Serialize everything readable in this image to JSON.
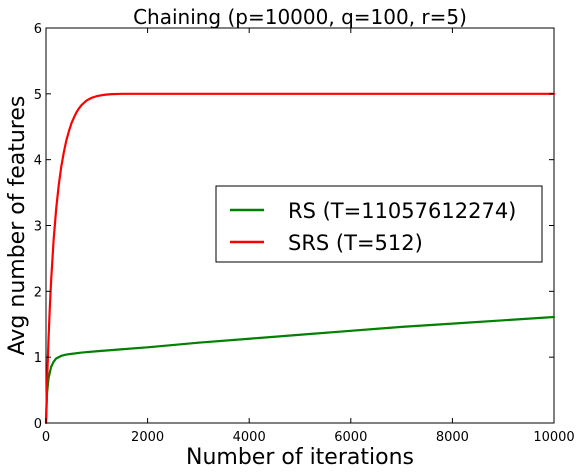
{
  "chart_data": {
    "type": "line",
    "title": "Chaining (p=10000, q=100, r=5)",
    "xlabel": "Number of iterations",
    "ylabel": "Avg number of features",
    "xlim": [
      0,
      10000
    ],
    "ylim": [
      0,
      6
    ],
    "xticks": [
      0,
      2000,
      4000,
      6000,
      8000,
      10000
    ],
    "yticks": [
      0,
      1,
      2,
      3,
      4,
      5,
      6
    ],
    "grid": false,
    "legend_position": "center-right",
    "series": [
      {
        "name": "RS (T=11057612274)",
        "color": "#008000",
        "x": [
          0,
          20,
          50,
          100,
          150,
          200,
          300,
          400,
          500,
          700,
          1000,
          1500,
          2000,
          3000,
          4000,
          5000,
          6000,
          7000,
          8000,
          9000,
          10000
        ],
        "y": [
          0,
          0.45,
          0.68,
          0.85,
          0.93,
          0.98,
          1.02,
          1.04,
          1.05,
          1.07,
          1.09,
          1.12,
          1.15,
          1.22,
          1.28,
          1.34,
          1.4,
          1.46,
          1.51,
          1.56,
          1.61
        ]
      },
      {
        "name": "SRS (T=512)",
        "color": "#ff0000",
        "x": [
          0,
          25,
          50,
          75,
          100,
          150,
          200,
          250,
          300,
          350,
          400,
          450,
          500,
          550,
          600,
          650,
          700,
          800,
          900,
          1000,
          1100,
          1200,
          1300,
          1500,
          2000,
          3000,
          4000,
          5000,
          6000,
          7000,
          8000,
          9000,
          10000
        ],
        "y": [
          0,
          0.72,
          1.28,
          1.75,
          2.15,
          2.78,
          3.25,
          3.61,
          3.89,
          4.11,
          4.29,
          4.43,
          4.55,
          4.64,
          4.72,
          4.78,
          4.83,
          4.9,
          4.94,
          4.965,
          4.98,
          4.99,
          4.995,
          5.0,
          5.0,
          5.0,
          5.0,
          5.0,
          5.0,
          5.0,
          5.0,
          5.0,
          5.0
        ]
      }
    ]
  }
}
